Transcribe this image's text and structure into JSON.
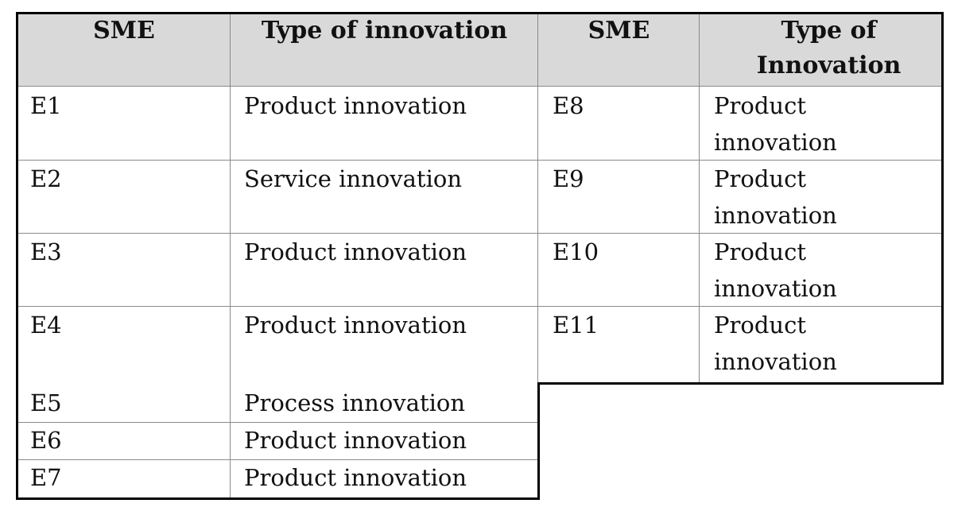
{
  "header": {
    "left_sme": "SME",
    "left_type": "Type of innovation",
    "right_sme": "SME",
    "right_type_line1": "Type of",
    "right_type_line2": "Innovation"
  },
  "left_rows": [
    {
      "sme": "E1",
      "type": "Product innovation"
    },
    {
      "sme": "E2",
      "type": "Service innovation"
    },
    {
      "sme": "E3",
      "type": "Product innovation"
    },
    {
      "sme": "E4",
      "type": "Product innovation"
    },
    {
      "sme": "E5",
      "type": "Process innovation"
    },
    {
      "sme": "E6",
      "type": "Product innovation"
    },
    {
      "sme": "E7",
      "type": "Product innovation"
    }
  ],
  "right_rows": [
    {
      "sme": "E8",
      "type_line1": "Product",
      "type_line2": "innovation"
    },
    {
      "sme": "E9",
      "type_line1": "Product",
      "type_line2": "innovation"
    },
    {
      "sme": "E10",
      "type_line1": "Product",
      "type_line2": "innovation"
    },
    {
      "sme": "E11",
      "type_line1": "Product",
      "type_line2": "innovation"
    }
  ]
}
